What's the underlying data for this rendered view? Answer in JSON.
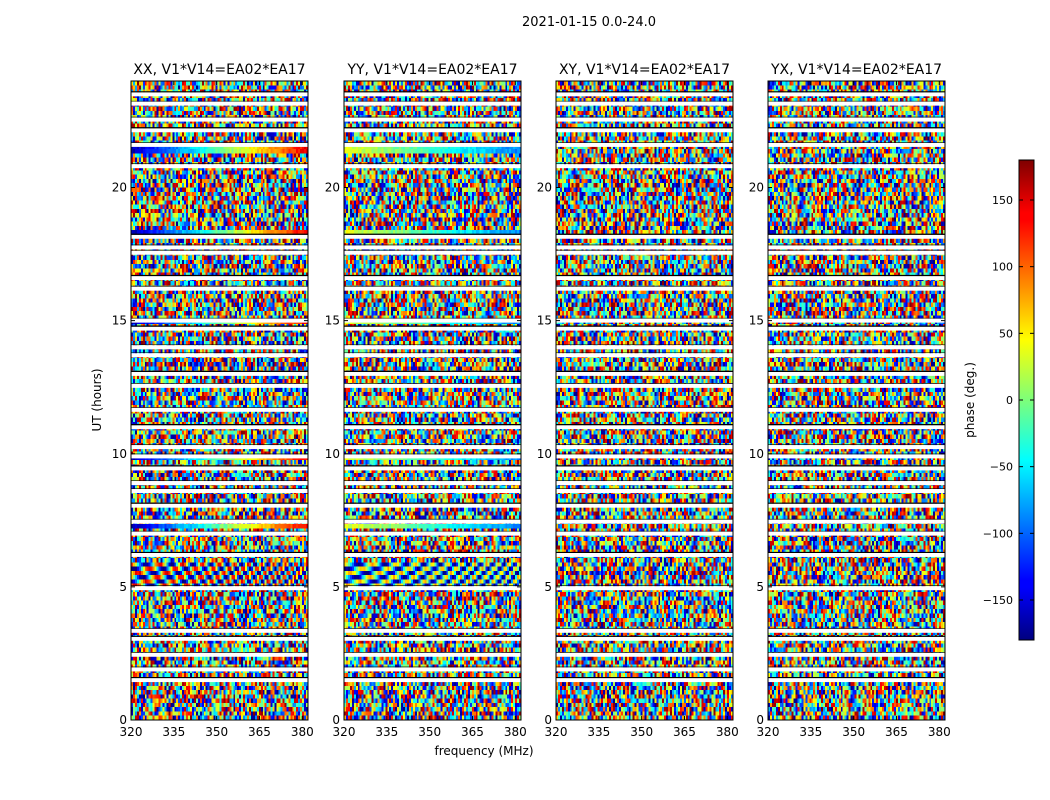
{
  "figure_title": "2021-01-15 0.0-24.0",
  "chart_data": {
    "type": "heatmap",
    "title": "2021-01-15 0.0-24.0",
    "xlabel": "frequency (MHz)",
    "ylabel": "UT (hours)",
    "xlim": [
      320,
      382
    ],
    "ylim": [
      0,
      24
    ],
    "x_ticks": [
      320,
      335,
      350,
      365,
      380
    ],
    "y_ticks": [
      0,
      5,
      10,
      15,
      20
    ],
    "colormap": "jet",
    "colorbar": {
      "label": "phase (deg.)",
      "range": [
        -180,
        180
      ],
      "ticks": [
        -150,
        -100,
        -50,
        0,
        50,
        100,
        150
      ],
      "tick_labels": [
        "−150",
        "−100",
        "−50",
        "0",
        "50",
        "100",
        "150"
      ]
    },
    "panels": [
      {
        "id": "xx",
        "title": "XX, V1*V14=EA02*EA17",
        "show_ylabel": true,
        "show_xlabel": false
      },
      {
        "id": "yy",
        "title": "YY, V1*V14=EA02*EA17",
        "show_ylabel": false,
        "show_xlabel": true
      },
      {
        "id": "xy",
        "title": "XY, V1*V14=EA02*EA17",
        "show_ylabel": false,
        "show_xlabel": false
      },
      {
        "id": "yx",
        "title": "YX, V1*V14=EA02*EA17",
        "show_ylabel": false,
        "show_xlabel": false
      }
    ],
    "flagged_ut_hours": [
      1.5,
      1.9,
      2.45,
      3.05,
      3.35,
      4.95,
      6.2,
      7.0,
      7.45,
      8.05,
      8.6,
      8.9,
      9.45,
      9.9,
      10.25,
      11.0,
      11.65,
      12.55,
      13.0,
      13.7,
      14.0,
      14.7,
      15.0,
      16.2,
      16.6,
      17.55,
      17.75,
      18.15,
      20.8,
      21.6,
      22.15,
      22.55,
      23.15,
      23.5
    ],
    "coherent_bands": [
      {
        "ut": [
          5.0,
          5.9
        ],
        "kind": "fringe"
      },
      {
        "ut": [
          7.25,
          7.4
        ],
        "kind": "smooth"
      },
      {
        "ut": [
          9.75,
          9.95
        ],
        "kind": "smooth"
      },
      {
        "ut": [
          14.85,
          15.0
        ],
        "kind": "smooth"
      },
      {
        "ut": [
          18.15,
          18.35
        ],
        "kind": "smooth"
      },
      {
        "ut": [
          21.35,
          21.55
        ],
        "kind": "smooth"
      }
    ]
  }
}
